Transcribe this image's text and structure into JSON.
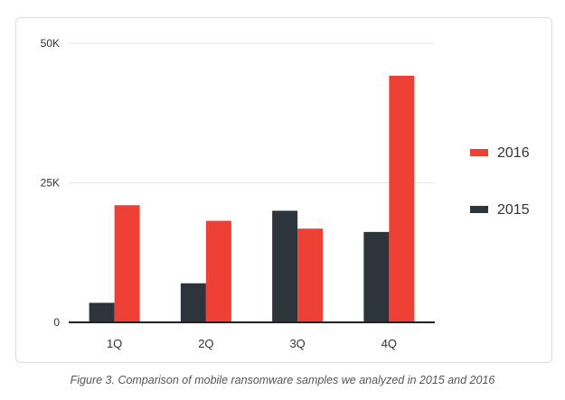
{
  "chart_data": {
    "type": "bar",
    "title": "",
    "xlabel": "",
    "ylabel": "",
    "categories": [
      "1Q",
      "2Q",
      "3Q",
      "4Q"
    ],
    "yticks": [
      {
        "value": 0,
        "label": "0"
      },
      {
        "value": 25000,
        "label": "25K"
      },
      {
        "value": 50000,
        "label": "50K"
      }
    ],
    "ylim": [
      0,
      50000
    ],
    "series": [
      {
        "name": "2015",
        "color": "#2e343b",
        "values": [
          3500,
          7000,
          20000,
          16200
        ]
      },
      {
        "name": "2016",
        "color": "#ef4036",
        "values": [
          21000,
          18200,
          16800,
          44200
        ]
      }
    ],
    "legend": {
      "position": "right",
      "order": [
        "2016",
        "2015"
      ]
    },
    "grid": true
  },
  "caption": "Figure 3. Comparison of mobile ransomware samples we analyzed in 2015 and 2016"
}
